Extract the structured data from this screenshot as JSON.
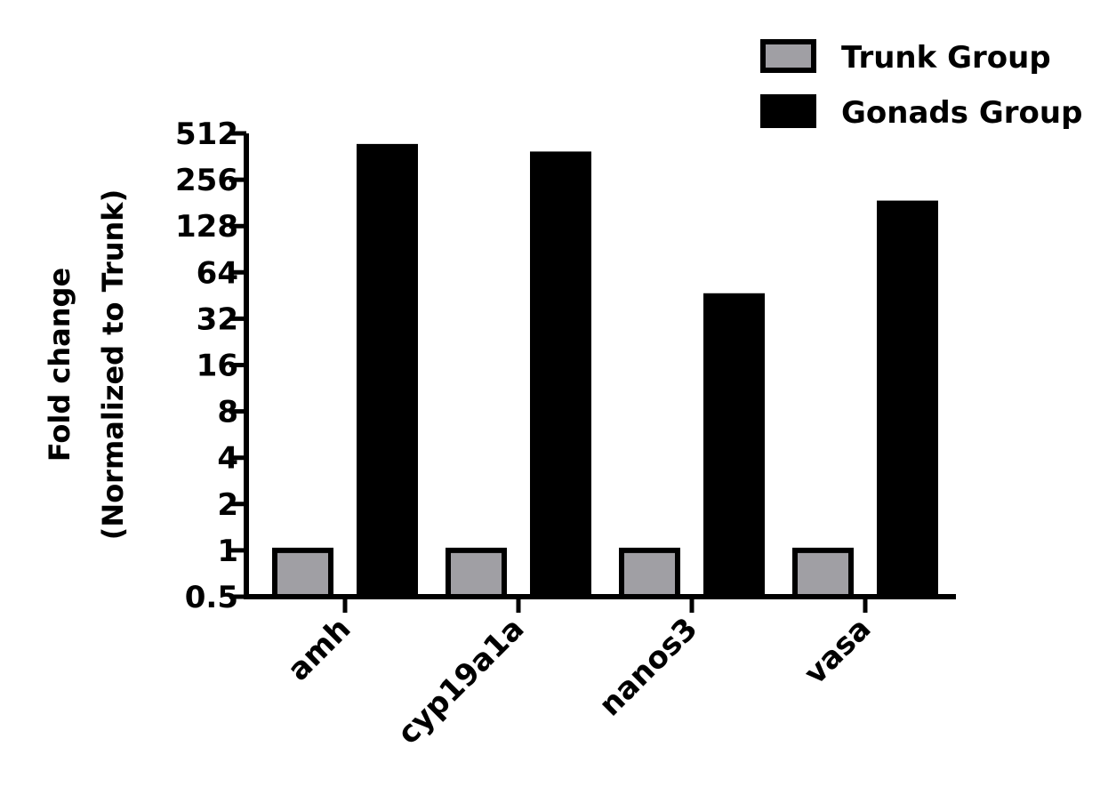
{
  "chart_data": {
    "type": "bar",
    "title": "",
    "xlabel": "",
    "ylabel_lines": [
      "Fold change",
      "(Normalized to Trunk)"
    ],
    "yscale": "log2",
    "ylim": [
      0.5,
      512
    ],
    "yticks": [
      0.5,
      1,
      2,
      4,
      8,
      16,
      32,
      64,
      128,
      256,
      512
    ],
    "ytick_labels": [
      "0.5",
      "1",
      "2",
      "4",
      "8",
      "16",
      "32",
      "64",
      "128",
      "256",
      "512"
    ],
    "categories": [
      "amh",
      "cyp19a1a",
      "nanos3",
      "vasa"
    ],
    "series": [
      {
        "name": "Trunk Group",
        "color": "#a09fa4",
        "values": [
          1,
          1,
          1,
          1
        ]
      },
      {
        "name": "Gonads Group",
        "color": "#000000",
        "values": [
          420,
          375,
          45,
          180
        ]
      }
    ],
    "legend_position": "top-right",
    "grid": false
  }
}
